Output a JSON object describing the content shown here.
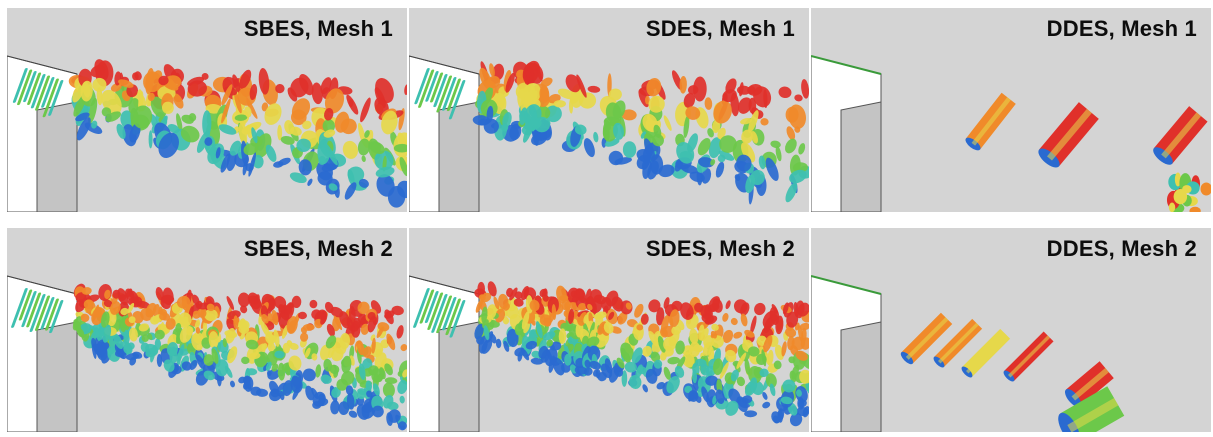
{
  "panels": [
    {
      "label": "SBES, Mesh 1"
    },
    {
      "label": "SDES, Mesh 1"
    },
    {
      "label": "DDES, Mesh 1"
    },
    {
      "label": "SBES, Mesh 2"
    },
    {
      "label": "SDES, Mesh 2"
    },
    {
      "label": "DDES, Mesh 2"
    }
  ],
  "colors": {
    "background": "#d4d4d4",
    "step_face": "#ffffff",
    "wall": "#c6c6c6",
    "red": "#e0302a",
    "orange": "#f08a2a",
    "yellow": "#e6d84a",
    "green": "#6cc84a",
    "cyan": "#3ec0b0",
    "blue": "#2a6ad0"
  }
}
